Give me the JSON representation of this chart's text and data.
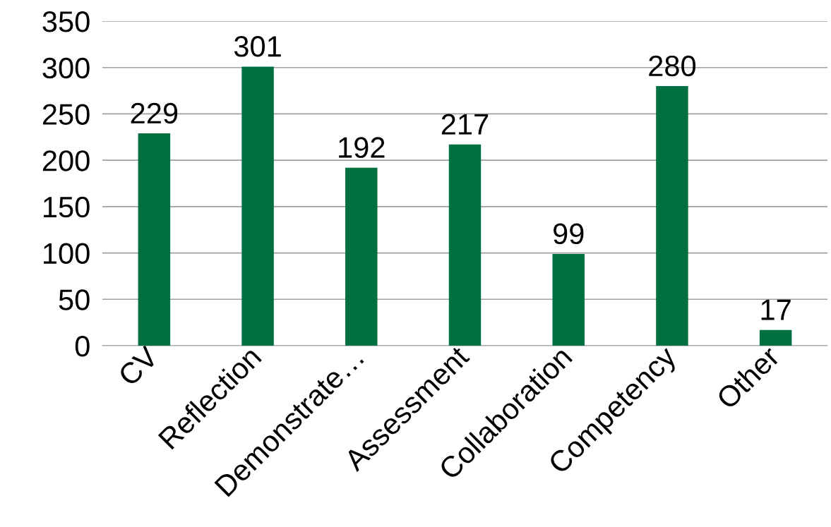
{
  "chart_data": {
    "type": "bar",
    "categories": [
      "CV",
      "Reflection",
      "Demonstrate…",
      "Assessment",
      "Collaboration",
      "Competency",
      "Other"
    ],
    "values": [
      229,
      301,
      192,
      217,
      99,
      280,
      17
    ],
    "color": "#007041",
    "ylim": [
      0,
      350
    ],
    "yticks": [
      0,
      50,
      100,
      150,
      200,
      250,
      300,
      350
    ],
    "grid": "y",
    "data_labels": true
  }
}
